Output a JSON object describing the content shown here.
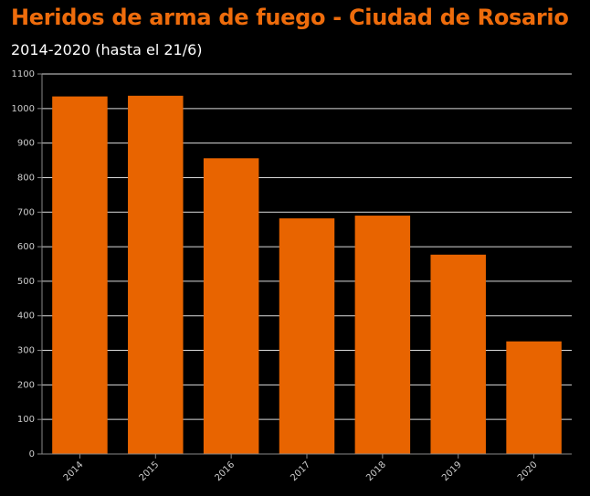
{
  "title": "Heridos de arma de fuego - Ciudad de Rosario",
  "subtitle": "2014-2020 (hasta el 21/6)",
  "colors": {
    "background": "#000000",
    "title": "#ee6c0c",
    "bar": "#e86400",
    "grid": "#ffffff",
    "tick_text": "#cccccc"
  },
  "chart_data": {
    "type": "bar",
    "categories": [
      "2014",
      "2015",
      "2016",
      "2017",
      "2018",
      "2019",
      "2020"
    ],
    "values": [
      1035,
      1037,
      856,
      682,
      690,
      577,
      326
    ],
    "ylim": [
      0,
      1100
    ],
    "yticks": [
      0,
      100,
      200,
      300,
      400,
      500,
      600,
      700,
      800,
      900,
      1000,
      1100
    ],
    "ytick_labels": [
      "0",
      "100",
      "200",
      "300",
      "400",
      "500",
      "600",
      "700",
      "800",
      "900",
      "1000",
      "1100"
    ],
    "grid": true,
    "xlabel": "",
    "ylabel": ""
  }
}
